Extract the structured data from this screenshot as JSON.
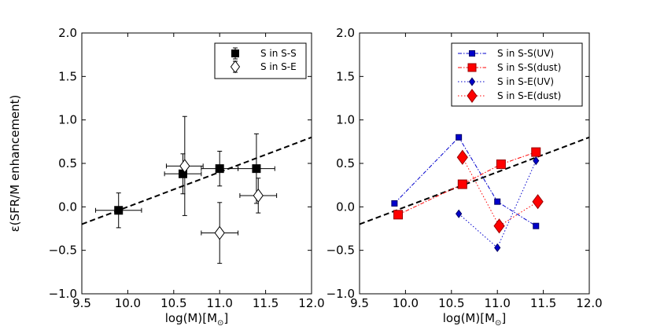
{
  "chart_data": [
    {
      "type": "scatter",
      "panel": "left",
      "xlabel": "log(M)[M",
      "xlabel_sub": "⊙",
      "xlabel_close": "]",
      "ylabel": "ε(SFR/M enhancement)",
      "xlim": [
        9.5,
        12.0
      ],
      "ylim": [
        -1.0,
        2.0
      ],
      "xticks": [
        "9.5",
        "10.0",
        "10.5",
        "11.0",
        "11.5",
        "12.0"
      ],
      "yticks": [
        "−1.0",
        "−0.5",
        "0.0",
        "0.5",
        "1.0",
        "1.5",
        "2.0"
      ],
      "xtick_values": [
        9.5,
        10.0,
        10.5,
        11.0,
        11.5,
        12.0
      ],
      "ytick_values": [
        -1.0,
        -0.5,
        0.0,
        0.5,
        1.0,
        1.5,
        2.0
      ],
      "fit_line": {
        "x": [
          9.5,
          12.0
        ],
        "y": [
          -0.2,
          0.8
        ],
        "style": "dashed"
      },
      "legend_position": "top-right",
      "series": [
        {
          "name": "S in S-S",
          "marker": "square",
          "fill": "#000000",
          "color": "#000000",
          "points": [
            {
              "x": 9.9,
              "y": -0.04,
              "xerr": 0.25,
              "yerr": 0.2
            },
            {
              "x": 10.6,
              "y": 0.38,
              "xerr": 0.2,
              "yerr": 0.23
            },
            {
              "x": 11.0,
              "y": 0.44,
              "xerr": 0.2,
              "yerr": 0.2
            },
            {
              "x": 11.4,
              "y": 0.44,
              "xerr": 0.2,
              "yerr": 0.4
            }
          ]
        },
        {
          "name": "S in S-E",
          "marker": "diamond",
          "fill": "#ffffff",
          "color": "#000000",
          "points": [
            {
              "x": 10.62,
              "y": 0.47,
              "xerr": 0.2,
              "yerr": 0.57
            },
            {
              "x": 11.0,
              "y": -0.3,
              "xerr": 0.2,
              "yerr": 0.35
            },
            {
              "x": 11.42,
              "y": 0.13,
              "xerr": 0.2,
              "yerr": 0.2
            }
          ]
        }
      ]
    },
    {
      "type": "line",
      "panel": "right",
      "xlabel": "log(M)[M",
      "xlabel_sub": "⊙",
      "xlabel_close": "]",
      "ylabel": "",
      "xlim": [
        9.5,
        12.0
      ],
      "ylim": [
        -1.0,
        2.0
      ],
      "xticks": [
        "9.5",
        "10.0",
        "10.5",
        "11.0",
        "11.5",
        "12.0"
      ],
      "yticks": [
        "−1.0",
        "−0.5",
        "0.0",
        "0.5",
        "1.0",
        "1.5",
        "2.0"
      ],
      "xtick_values": [
        9.5,
        10.0,
        10.5,
        11.0,
        11.5,
        12.0
      ],
      "ytick_values": [
        -1.0,
        -0.5,
        0.0,
        0.5,
        1.0,
        1.5,
        2.0
      ],
      "fit_line": {
        "x": [
          9.5,
          12.0
        ],
        "y": [
          -0.2,
          0.8
        ],
        "style": "dashed"
      },
      "legend_position": "top-right",
      "series": [
        {
          "name": "S in S-S(UV)",
          "marker": "square",
          "size": "small",
          "color": "#0000cc",
          "line": "dashdot",
          "x": [
            9.88,
            10.58,
            11.0,
            11.42
          ],
          "y": [
            0.04,
            0.8,
            0.06,
            -0.22
          ]
        },
        {
          "name": "S in S-S(dust)",
          "marker": "square",
          "size": "large",
          "color": "#ff0000",
          "line": "dashdot",
          "x": [
            9.92,
            10.62,
            11.04,
            11.42
          ],
          "y": [
            -0.09,
            0.26,
            0.49,
            0.63
          ]
        },
        {
          "name": "S in S-E(UV)",
          "marker": "diamond",
          "size": "small",
          "color": "#0000cc",
          "line": "dotted",
          "x": [
            10.58,
            11.0,
            11.42
          ],
          "y": [
            -0.08,
            -0.47,
            0.53
          ]
        },
        {
          "name": "S in S-E(dust)",
          "marker": "diamond",
          "size": "large",
          "color": "#ff0000",
          "line": "dotted",
          "x": [
            10.62,
            11.02,
            11.44
          ],
          "y": [
            0.57,
            -0.22,
            0.06
          ]
        }
      ]
    }
  ]
}
